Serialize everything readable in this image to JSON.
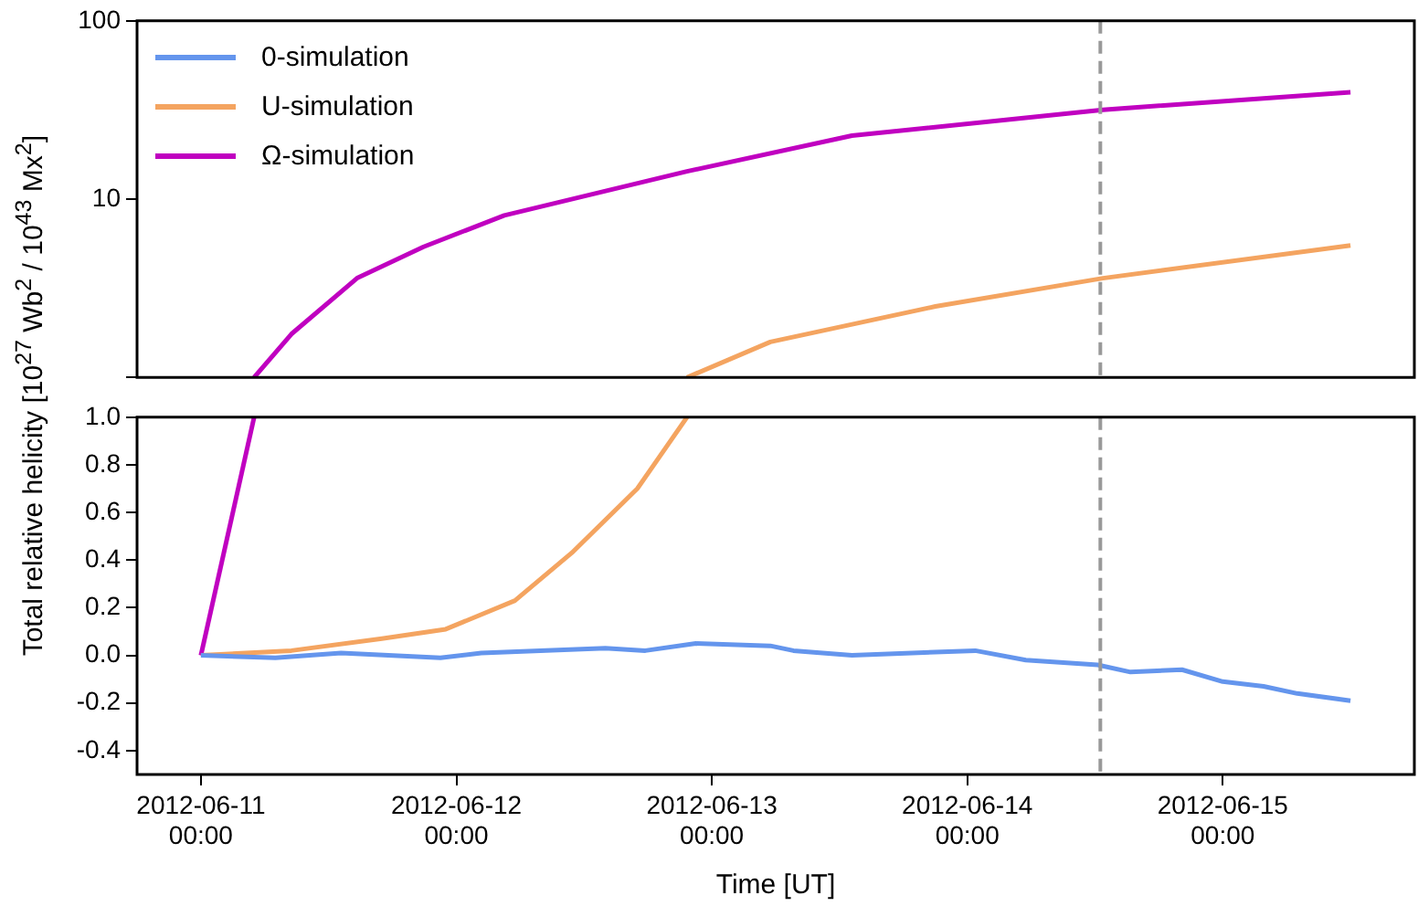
{
  "chart_data": [
    {
      "type": "line",
      "ylabel": "Total relative helicity [10$^{27}$ Wb$^{2}$ / 10$^{43}$ Mx$^{2}$]",
      "log": "y",
      "tick_labels": "y",
      "xlim": [
        "2012-06-10T18:00",
        "2012-06-15T18:00"
      ],
      "ylim": [
        1,
        100
      ],
      "yticks": [
        {
          "value": 1,
          "label": null
        },
        10,
        100
      ],
      "ref_lines": [
        {
          "axis": "x",
          "value": "2012-06-14T12:30",
          "color": "#999999",
          "line_style": "dashed"
        }
      ],
      "series": [
        {
          "color": "#f4a460",
          "x": [
            "2012-06-12T21:40",
            "2012-06-13T05:30",
            "2012-06-13T21:00",
            "2012-06-14T12:45",
            "2012-06-15T12:00"
          ],
          "values": [
            1.0,
            1.58,
            2.5,
            3.6,
            5.5
          ]
        },
        {
          "color": "#c000c0",
          "x": [
            "2012-06-11T05:00",
            "2012-06-11T08:30",
            "2012-06-11T14:40",
            "2012-06-11T20:55",
            "2012-06-12T04:30",
            "2012-06-12T21:40",
            "2012-06-13T13:10",
            "2012-06-14T12:45",
            "2012-06-15T12:00"
          ],
          "values": [
            1.0,
            1.75,
            3.6,
            5.4,
            8.1,
            14.3,
            22.7,
            31.7,
            39.8
          ]
        }
      ]
    },
    {
      "type": "line",
      "xlabel": "Time [UT]",
      "legend": "top left",
      "xlim": [
        "2012-06-10T18:00",
        "2012-06-15T18:00"
      ],
      "ylim": [
        -0.5,
        1.0
      ],
      "xticks": [
        {
          "value": "2012-06-11T00:00",
          "label": "2012-06-11 00:00"
        },
        {
          "value": "2012-06-12T00:00",
          "label": "2012-06-12 00:00"
        },
        {
          "value": "2012-06-13T00:00",
          "label": "2012-06-13 00:00"
        },
        {
          "value": "2012-06-14T00:00",
          "label": "2012-06-14 00:00"
        },
        {
          "value": "2012-06-15T00:00",
          "label": "2012-06-15 00:00"
        }
      ],
      "yticks": [
        {
          "value": -0.4,
          "label": "-0.4"
        },
        {
          "value": -0.2,
          "label": "-0.2"
        },
        {
          "value": 0,
          "label": "0.0"
        },
        {
          "value": 0.2,
          "label": "0.2"
        },
        {
          "value": 0.4,
          "label": "0.4"
        },
        {
          "value": 0.6,
          "label": "0.6"
        },
        {
          "value": 0.8,
          "label": "0.8"
        },
        {
          "value": 1,
          "label": "1.0"
        }
      ],
      "ref_lines": [
        {
          "axis": "x",
          "value": "2012-06-14T12:30",
          "color": "#999999",
          "line_style": "dashed"
        }
      ],
      "series": [
        {
          "name": "0-simulation",
          "color": "#6495ed",
          "x": [
            "2012-06-11T00:00",
            "2012-06-11T07:00",
            "2012-06-11T13:10",
            "2012-06-11T22:30",
            "2012-06-12T02:20",
            "2012-06-12T14:00",
            "2012-06-12T17:45",
            "2012-06-12T22:30",
            "2012-06-13T05:30",
            "2012-06-13T07:40",
            "2012-06-13T13:10",
            "2012-06-14T00:45",
            "2012-06-14T05:30",
            "2012-06-14T12:15",
            "2012-06-14T15:20",
            "2012-06-14T20:10",
            "2012-06-15T00:00",
            "2012-06-15T03:50",
            "2012-06-15T07:00",
            "2012-06-15T12:00"
          ],
          "values": [
            0,
            -0.01,
            0.01,
            -0.01,
            0.01,
            0.03,
            0.02,
            0.05,
            0.04,
            0.02,
            0,
            0.02,
            -0.02,
            -0.04,
            -0.07,
            -0.06,
            -0.11,
            -0.13,
            -0.16,
            -0.19
          ]
        },
        {
          "name": "U-simulation",
          "color": "#f4a460",
          "x": [
            "2012-06-11T00:00",
            "2012-06-11T08:30",
            "2012-06-11T17:00",
            "2012-06-11T23:00",
            "2012-06-12T05:30",
            "2012-06-12T10:50",
            "2012-06-12T17:00",
            "2012-06-12T21:40"
          ],
          "values": [
            0,
            0.02,
            0.07,
            0.11,
            0.23,
            0.43,
            0.7,
            1.0
          ]
        },
        {
          "name": "Ω-simulation",
          "color": "#c000c0",
          "x": [
            "2012-06-11T00:00",
            "2012-06-11T05:00"
          ],
          "values": [
            0,
            1.0
          ]
        }
      ]
    }
  ]
}
